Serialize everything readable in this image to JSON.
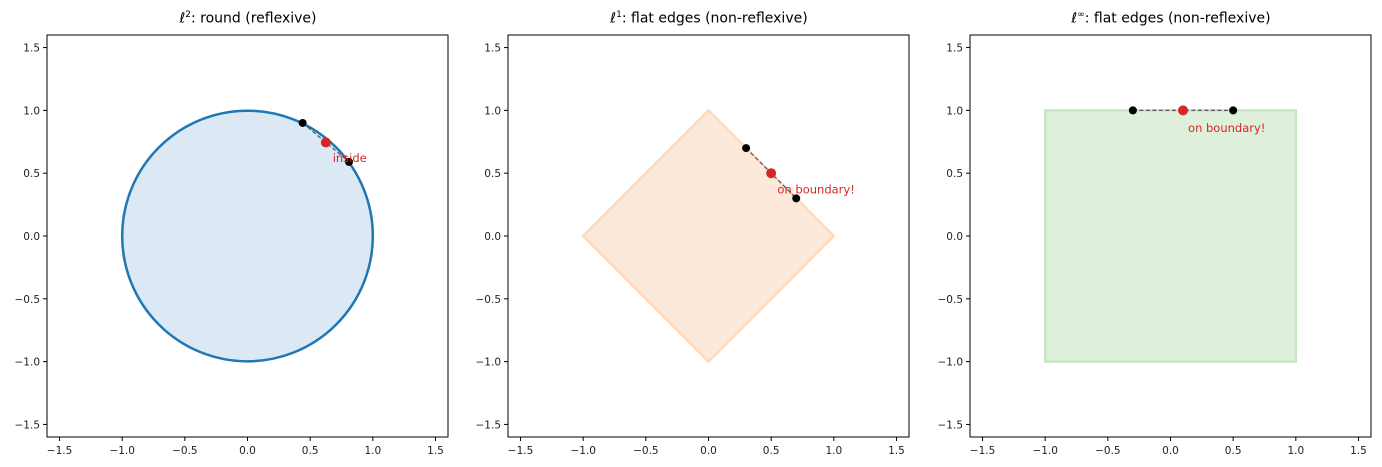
{
  "chart_data": [
    {
      "type": "scatter",
      "title": "ℓ²: round (reflexive)",
      "title_base": "ℓ",
      "title_sup": "2",
      "title_rest": ": round (reflexive)",
      "xlim": [
        -1.6,
        1.6
      ],
      "ylim": [
        -1.6,
        1.6
      ],
      "xticks": [
        -1.5,
        -1.0,
        -0.5,
        0.0,
        0.5,
        1.0,
        1.5
      ],
      "yticks": [
        -1.5,
        -1.0,
        -0.5,
        0.0,
        0.5,
        1.0,
        1.5
      ],
      "shape": "circle",
      "shape_fill": "#dce8f3",
      "shape_stroke": "#1f77b4",
      "points": [
        {
          "x": 0.44,
          "y": 0.9,
          "color": "#000000"
        },
        {
          "x": 0.81,
          "y": 0.59,
          "color": "#000000"
        }
      ],
      "midpoint": {
        "x": 0.625,
        "y": 0.745,
        "color": "#d62728"
      },
      "annotation": {
        "text": "inside",
        "x": 0.68,
        "y": 0.62
      }
    },
    {
      "type": "scatter",
      "title": "ℓ¹: flat edges (non-reflexive)",
      "title_base": "ℓ",
      "title_sup": "1",
      "title_rest": ": flat edges (non-reflexive)",
      "xlim": [
        -1.6,
        1.6
      ],
      "ylim": [
        -1.6,
        1.6
      ],
      "xticks": [
        -1.5,
        -1.0,
        -0.5,
        0.0,
        0.5,
        1.0,
        1.5
      ],
      "yticks": [
        -1.5,
        -1.0,
        -0.5,
        0.0,
        0.5,
        1.0,
        1.5
      ],
      "shape": "diamond",
      "shape_fill": "#fde9d9",
      "shape_stroke": "#fdd9bd",
      "points": [
        {
          "x": 0.3,
          "y": 0.7,
          "color": "#000000"
        },
        {
          "x": 0.7,
          "y": 0.3,
          "color": "#000000"
        }
      ],
      "midpoint": {
        "x": 0.5,
        "y": 0.5,
        "color": "#d62728"
      },
      "annotation": {
        "text": "on boundary!",
        "x": 0.55,
        "y": 0.37
      }
    },
    {
      "type": "scatter",
      "title": "ℓ∞: flat edges (non-reflexive)",
      "title_base": "ℓ",
      "title_sup": "∞",
      "title_rest": ": flat edges (non-reflexive)",
      "xlim": [
        -1.6,
        1.6
      ],
      "ylim": [
        -1.6,
        1.6
      ],
      "xticks": [
        -1.5,
        -1.0,
        -0.5,
        0.0,
        0.5,
        1.0,
        1.5
      ],
      "yticks": [
        -1.5,
        -1.0,
        -0.5,
        0.0,
        0.5,
        1.0,
        1.5
      ],
      "shape": "square",
      "shape_fill": "#deefdc",
      "shape_stroke": "#c9e6c6",
      "points": [
        {
          "x": -0.3,
          "y": 1.0,
          "color": "#000000"
        },
        {
          "x": 0.5,
          "y": 1.0,
          "color": "#000000"
        }
      ],
      "midpoint": {
        "x": 0.1,
        "y": 1.0,
        "color": "#d62728"
      },
      "annotation": {
        "text": "on boundary!",
        "x": 0.14,
        "y": 0.86
      }
    }
  ],
  "tick_labels": [
    "−1.5",
    "−1.0",
    "−0.5",
    "0.0",
    "0.5",
    "1.0",
    "1.5"
  ]
}
